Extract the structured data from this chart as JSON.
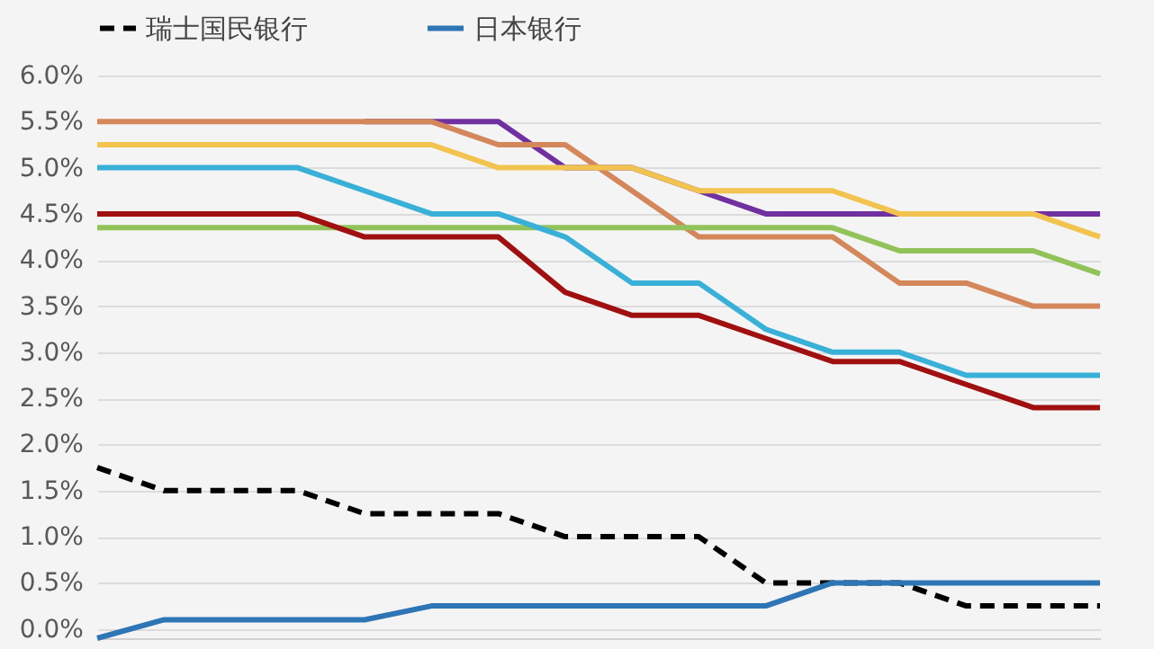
{
  "chart_data": {
    "type": "line",
    "categories": [
      null,
      null,
      null,
      null,
      null,
      null,
      null,
      null,
      null,
      null,
      null,
      null,
      null,
      null,
      null,
      null
    ],
    "series": [
      {
        "name": "瑞士国民银行",
        "color": "#000000",
        "line_style": "dashed",
        "values": [
          1.75,
          1.5,
          1.5,
          1.5,
          1.25,
          1.25,
          1.25,
          1.0,
          1.0,
          1.0,
          0.5,
          0.5,
          0.5,
          0.25,
          0.25,
          0.25
        ]
      },
      {
        "name": "日本银行",
        "color": "#2e75b6",
        "values": [
          -0.1,
          0.1,
          0.1,
          0.1,
          0.1,
          0.25,
          0.25,
          0.25,
          0.25,
          0.25,
          0.25,
          0.5,
          0.5,
          0.5,
          0.5,
          0.5
        ]
      },
      {
        "color": "#7030a0",
        "values": [
          null,
          null,
          null,
          null,
          5.5,
          5.5,
          5.5,
          5.0,
          5.0,
          4.75,
          4.5,
          4.5,
          4.5,
          4.5,
          4.5,
          4.5
        ]
      },
      {
        "color": "#d4875a",
        "values": [
          5.5,
          5.5,
          5.5,
          5.5,
          5.5,
          5.5,
          5.25,
          5.25,
          4.75,
          4.25,
          4.25,
          4.25,
          3.75,
          3.75,
          3.5,
          3.5
        ]
      },
      {
        "color": "#f2c34e",
        "values": [
          5.25,
          5.25,
          5.25,
          5.25,
          5.25,
          5.25,
          5.0,
          5.0,
          5.0,
          4.75,
          4.75,
          4.75,
          4.5,
          4.5,
          4.5,
          4.25
        ]
      },
      {
        "color": "#92c35a",
        "values": [
          4.35,
          4.35,
          4.35,
          4.35,
          4.35,
          4.35,
          4.35,
          4.35,
          4.35,
          4.35,
          4.35,
          4.35,
          4.1,
          4.1,
          4.1,
          3.85
        ]
      },
      {
        "color": "#38b0d8",
        "values": [
          5.0,
          5.0,
          5.0,
          5.0,
          4.75,
          4.5,
          4.5,
          4.25,
          3.75,
          3.75,
          3.25,
          3.0,
          3.0,
          2.75,
          2.75,
          2.75
        ]
      },
      {
        "color": "#a01010",
        "values": [
          4.5,
          4.5,
          4.5,
          4.5,
          4.25,
          4.25,
          4.25,
          3.65,
          3.4,
          3.4,
          3.15,
          2.9,
          2.9,
          2.65,
          2.4,
          2.4
        ]
      }
    ],
    "ylim": [
      -0.1,
      6.0
    ],
    "yticks": [
      {
        "value": 0,
        "label": "0.0%"
      },
      {
        "value": 0.5,
        "label": "0.5%"
      },
      {
        "value": 1,
        "label": "1.0%"
      },
      {
        "value": 1.5,
        "label": "1.5%"
      },
      {
        "value": 2,
        "label": "2.0%"
      },
      {
        "value": 2.5,
        "label": "2.5%"
      },
      {
        "value": 3,
        "label": "3.0%"
      },
      {
        "value": 3.5,
        "label": "3.5%"
      },
      {
        "value": 4,
        "label": "4.0%"
      },
      {
        "value": 4.5,
        "label": "4.5%"
      },
      {
        "value": 5,
        "label": "5.0%"
      },
      {
        "value": 5.5,
        "label": "5.5%"
      },
      {
        "value": 6,
        "label": "6.0%"
      }
    ],
    "grid": "y",
    "legend": "top",
    "tick_labels": "y",
    "marker": "none"
  }
}
